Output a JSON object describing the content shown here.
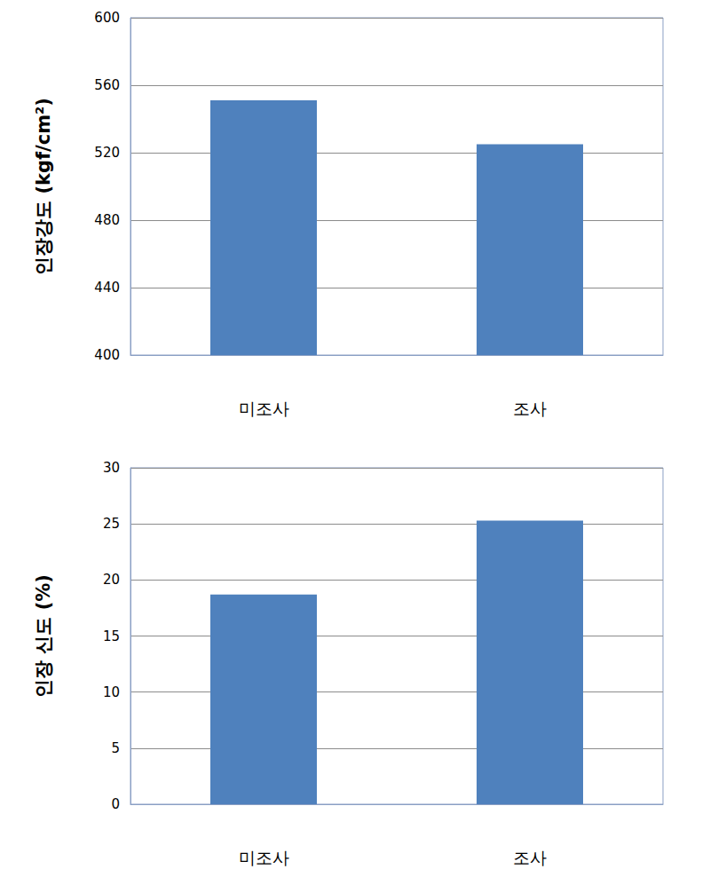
{
  "chart_data": [
    {
      "type": "bar",
      "ylabel": "인장강도 (kgf/cm²)",
      "categories": [
        "미조사",
        "조사"
      ],
      "values": [
        551,
        525
      ],
      "color": "#4f81bd",
      "ylim": [
        400,
        600
      ],
      "yticks": [
        400,
        440,
        480,
        520,
        560,
        600
      ],
      "grid": true
    },
    {
      "type": "bar",
      "ylabel": "인장 신도 (%)",
      "categories": [
        "미조사",
        "조사"
      ],
      "values": [
        18.7,
        25.3
      ],
      "color": "#4f81bd",
      "ylim": [
        0,
        30
      ],
      "yticks": [
        0,
        5,
        10,
        15,
        20,
        25,
        30
      ],
      "grid": true
    }
  ]
}
